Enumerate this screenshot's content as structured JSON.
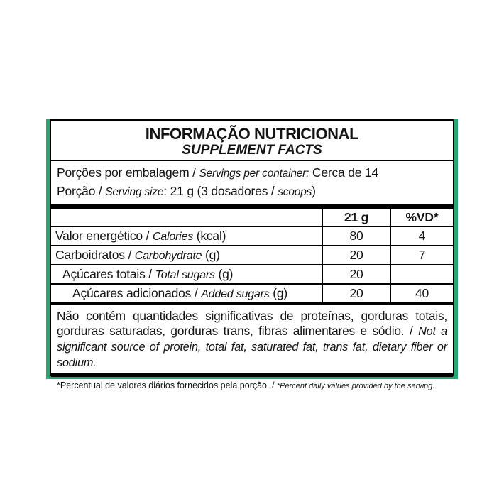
{
  "label": {
    "title_pt": "INFORMAÇÃO NUTRICIONAL",
    "title_en": "SUPPLEMENT FACTS",
    "servings_per_container": {
      "pt": "Porções por embalagem / ",
      "en": "Servings per container:",
      "value": " Cerca de 14"
    },
    "serving_size": {
      "pt": "Porção / ",
      "en": "Serving size",
      "mid": ": 21 g (3 dosadores / ",
      "en2": "scoops",
      "end": ")"
    },
    "table": {
      "col_amount": "21 g",
      "col_dv": "%VD*",
      "rows": [
        {
          "pt": "Valor energético / ",
          "en": "Calories",
          "suffix": " (kcal)",
          "amount": "80",
          "dv": "4"
        },
        {
          "pt": "Carboidratos / ",
          "en": "Carbohydrate",
          "suffix": " (g)",
          "amount": "20",
          "dv": "7"
        },
        {
          "pt": "Açúcares totais / ",
          "en": "Total sugars",
          "suffix": " (g)",
          "amount": "20",
          "dv": ""
        },
        {
          "pt": "Açúcares adicionados / ",
          "en": "Added sugars",
          "suffix": " (g)",
          "amount": "20",
          "dv": "40"
        }
      ]
    },
    "disclaimer": {
      "pt": "Não contém quantidades significativas de proteínas, gorduras totais, gorduras saturadas, gorduras trans, fibras alimentares e sódio. / ",
      "en": "Not a significant source of protein, total fat, saturated fat, trans fat, dietary fiber or sodium."
    },
    "footnote": {
      "pt": "*Percentual de valores diários fornecidos pela porção. / ",
      "en": "*Percent daily values provided by the serving."
    },
    "colors": {
      "border_green": "#2aa571",
      "border_black": "#000000"
    }
  }
}
